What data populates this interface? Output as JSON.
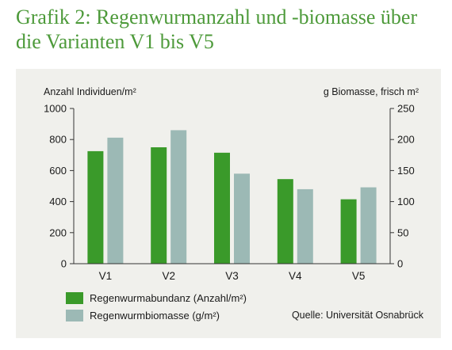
{
  "title": {
    "line1": "Grafik 2: Regenwurmanzahl und -biomasse über",
    "line2": "die Varianten V1 bis V5"
  },
  "source": "Quelle: Universität Osnabrück",
  "colors": {
    "title": "#4d9a3a",
    "panel": "#f0f0ec",
    "abundance": "#3a9a2a",
    "biomass": "#9cb9b5"
  },
  "chart_data": {
    "type": "bar",
    "categories": [
      "V1",
      "V2",
      "V3",
      "V4",
      "V5"
    ],
    "series": [
      {
        "name": "Regenwurmabundanz (Anzahl/m²)",
        "axis": "left",
        "values": [
          725,
          750,
          715,
          545,
          415
        ]
      },
      {
        "name": "Regenwurmbiomasse (g/m²)",
        "axis": "right",
        "values": [
          203,
          215,
          145,
          120,
          123
        ]
      }
    ],
    "ylabel_left": "Anzahl Individuen/m²",
    "ylabel_right": "g Biomasse, frisch m²",
    "ylim_left": [
      0,
      1000
    ],
    "ylim_right": [
      0,
      250
    ],
    "yticks_left": [
      "0",
      "200",
      "400",
      "600",
      "800",
      "1000"
    ],
    "yticks_right": [
      "0",
      "50",
      "100",
      "150",
      "200",
      "250"
    ],
    "grid": false,
    "legend_position": "bottom-left"
  }
}
